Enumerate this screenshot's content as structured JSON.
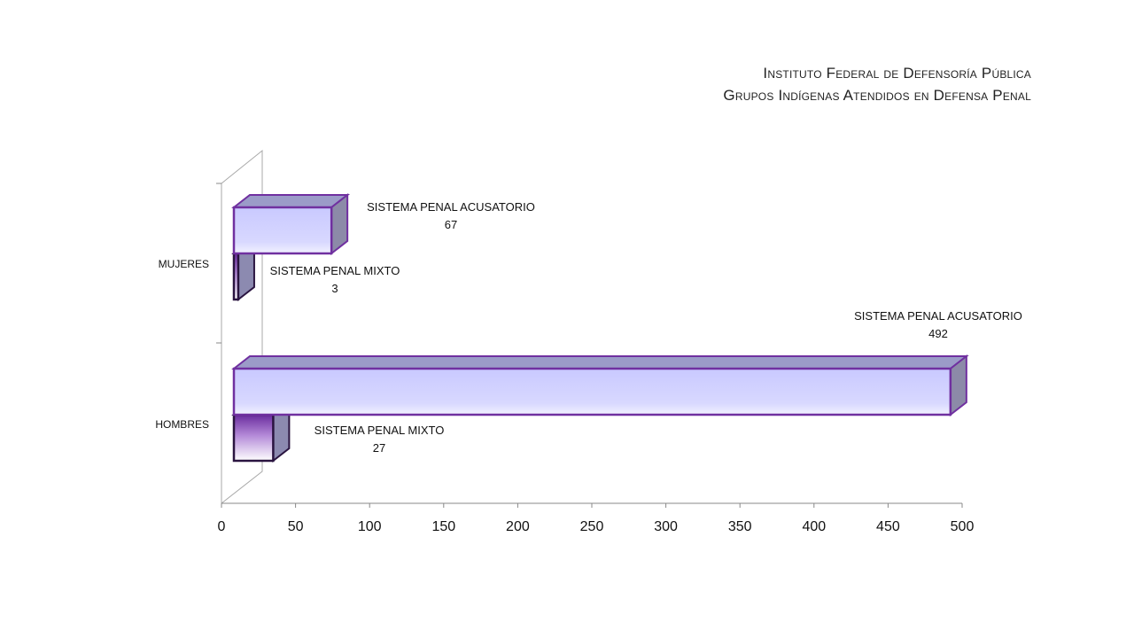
{
  "title_line1": "Instituto Federal de Defensoría Pública",
  "title_line2": "Grupos Indígenas  Atendidos en Defensa Penal",
  "chart_data": {
    "type": "bar",
    "orientation": "horizontal",
    "three_d": true,
    "categories": [
      "HOMBRES",
      "MUJERES"
    ],
    "series": [
      {
        "name": "SISTEMA PENAL MIXTO",
        "values": [
          27,
          3
        ],
        "color": "#6b2fa0"
      },
      {
        "name": "SISTEMA PENAL ACUSATORIO",
        "values": [
          492,
          67
        ],
        "color": "#d0d0ff"
      }
    ],
    "xlim": [
      0,
      500
    ],
    "x_ticks": [
      0,
      50,
      100,
      150,
      200,
      250,
      300,
      350,
      400,
      450,
      500
    ],
    "grid": false,
    "legend": "none",
    "edge_color": "#7030a0"
  }
}
